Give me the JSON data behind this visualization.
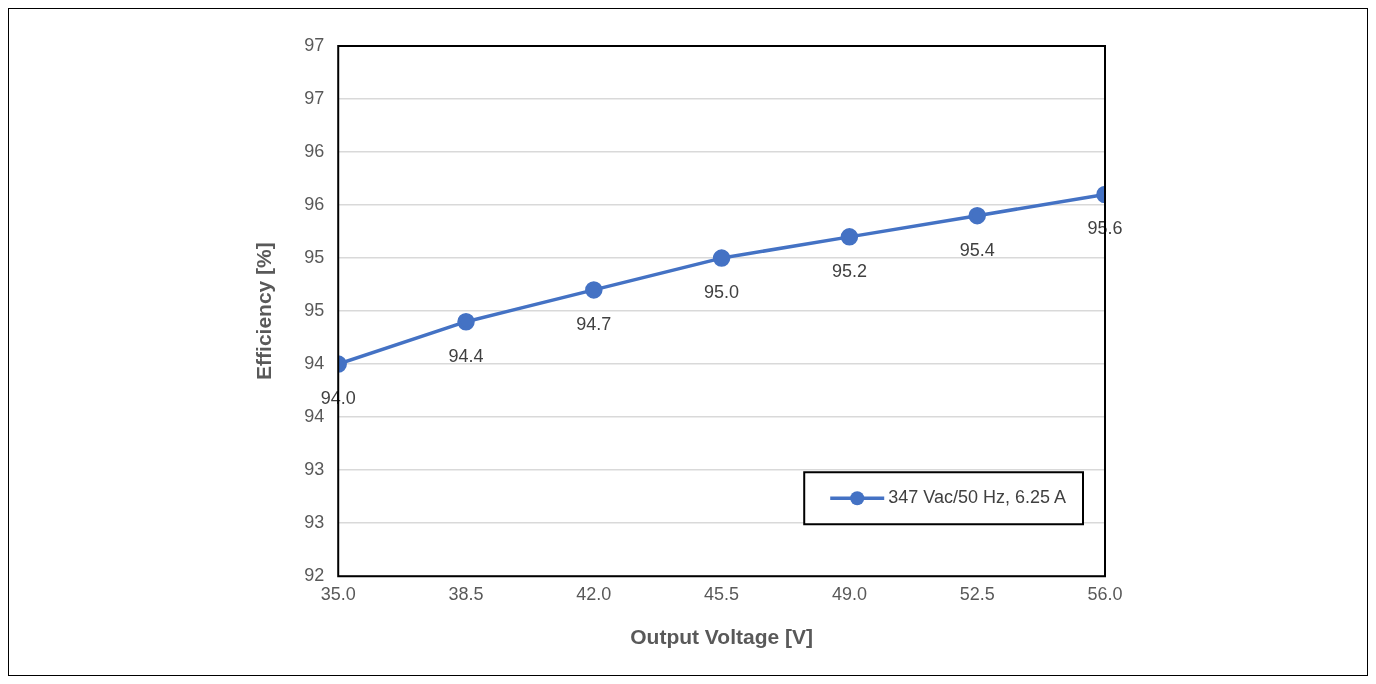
{
  "chart_data": {
    "type": "line",
    "xlabel": "Output Voltage [V]",
    "ylabel": "Efficiency [%]",
    "x": [
      35,
      38.5,
      42,
      45.5,
      49,
      52.5,
      56
    ],
    "series": [
      {
        "name": "347 Vac/50 Hz, 6.25 A",
        "color": "#4472c4",
        "values": [
          94.0,
          94.4,
          94.7,
          95.0,
          95.2,
          95.4,
          95.6
        ],
        "value_labels": [
          "94.0",
          "94.4",
          "94.7",
          "95.0",
          "95.2",
          "95.4",
          "95.6"
        ]
      }
    ],
    "xlim": [
      35,
      56
    ],
    "xticks": [
      {
        "value": 35,
        "label": "35.0"
      },
      {
        "value": 38.5,
        "label": "38.5"
      },
      {
        "value": 42,
        "label": "42.0"
      },
      {
        "value": 45.5,
        "label": "45.5"
      },
      {
        "value": 49,
        "label": "49.0"
      },
      {
        "value": 52.5,
        "label": "52.5"
      },
      {
        "value": 56,
        "label": "56.0"
      }
    ],
    "ylim": [
      92,
      97
    ],
    "yticks": [
      92,
      {
        "value": 92.5,
        "label": "93"
      },
      93,
      {
        "value": 93.5,
        "label": "94"
      },
      94,
      {
        "value": 94.5,
        "label": "95"
      },
      95,
      {
        "value": 95.5,
        "label": "96"
      },
      96,
      {
        "value": 96.5,
        "label": "97"
      },
      97
    ],
    "grid": "y",
    "legend": "bottom right",
    "marker": "circle",
    "line_style": "solid"
  }
}
